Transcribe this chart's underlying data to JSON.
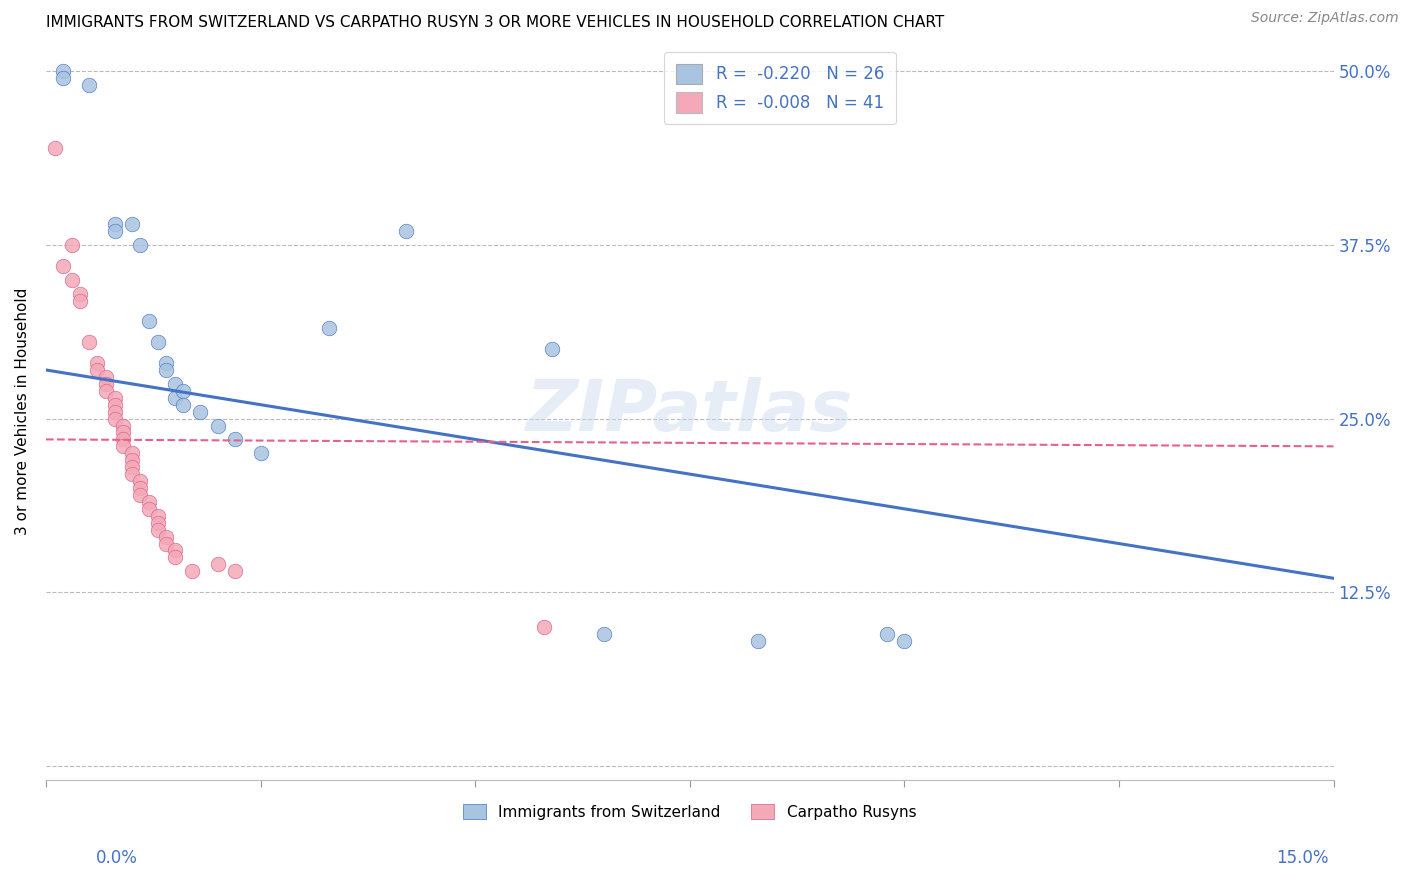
{
  "title": "IMMIGRANTS FROM SWITZERLAND VS CARPATHO RUSYN 3 OR MORE VEHICLES IN HOUSEHOLD CORRELATION CHART",
  "source": "Source: ZipAtlas.com",
  "ylabel": "3 or more Vehicles in Household",
  "color_swiss": "#a8c4e0",
  "color_rusyn": "#f4a8b8",
  "trendline_swiss_color": "#4472c4",
  "trendline_rusyn_color": "#e8608a",
  "xlim": [
    0.0,
    0.15
  ],
  "ylim": [
    -1.0,
    52.0
  ],
  "yticks": [
    0.0,
    12.5,
    25.0,
    37.5,
    50.0
  ],
  "ytick_labels": [
    "",
    "12.5%",
    "25.0%",
    "37.5%",
    "50.0%"
  ],
  "swiss_scatter": [
    [
      0.002,
      50.0
    ],
    [
      0.002,
      49.5
    ],
    [
      0.005,
      49.0
    ],
    [
      0.008,
      39.0
    ],
    [
      0.008,
      38.5
    ],
    [
      0.01,
      39.0
    ],
    [
      0.011,
      37.5
    ],
    [
      0.012,
      32.0
    ],
    [
      0.013,
      30.5
    ],
    [
      0.014,
      29.0
    ],
    [
      0.014,
      28.5
    ],
    [
      0.015,
      27.5
    ],
    [
      0.015,
      26.5
    ],
    [
      0.016,
      27.0
    ],
    [
      0.016,
      26.0
    ],
    [
      0.018,
      25.5
    ],
    [
      0.02,
      24.5
    ],
    [
      0.022,
      23.5
    ],
    [
      0.025,
      22.5
    ],
    [
      0.033,
      31.5
    ],
    [
      0.042,
      38.5
    ],
    [
      0.059,
      30.0
    ],
    [
      0.065,
      9.5
    ],
    [
      0.083,
      9.0
    ],
    [
      0.098,
      9.5
    ],
    [
      0.1,
      9.0
    ]
  ],
  "rusyn_scatter": [
    [
      0.001,
      44.5
    ],
    [
      0.002,
      36.0
    ],
    [
      0.003,
      37.5
    ],
    [
      0.003,
      35.0
    ],
    [
      0.004,
      34.0
    ],
    [
      0.004,
      33.5
    ],
    [
      0.005,
      30.5
    ],
    [
      0.006,
      29.0
    ],
    [
      0.006,
      28.5
    ],
    [
      0.007,
      28.0
    ],
    [
      0.007,
      27.5
    ],
    [
      0.007,
      27.0
    ],
    [
      0.008,
      26.5
    ],
    [
      0.008,
      26.0
    ],
    [
      0.008,
      25.5
    ],
    [
      0.008,
      25.0
    ],
    [
      0.009,
      24.5
    ],
    [
      0.009,
      24.0
    ],
    [
      0.009,
      23.5
    ],
    [
      0.009,
      23.0
    ],
    [
      0.01,
      22.5
    ],
    [
      0.01,
      22.0
    ],
    [
      0.01,
      21.5
    ],
    [
      0.01,
      21.0
    ],
    [
      0.011,
      20.5
    ],
    [
      0.011,
      20.0
    ],
    [
      0.011,
      19.5
    ],
    [
      0.012,
      19.0
    ],
    [
      0.012,
      18.5
    ],
    [
      0.013,
      18.0
    ],
    [
      0.013,
      17.5
    ],
    [
      0.013,
      17.0
    ],
    [
      0.014,
      16.5
    ],
    [
      0.014,
      16.0
    ],
    [
      0.015,
      15.5
    ],
    [
      0.015,
      15.0
    ],
    [
      0.017,
      14.0
    ],
    [
      0.02,
      14.5
    ],
    [
      0.022,
      14.0
    ],
    [
      0.058,
      10.0
    ]
  ],
  "swiss_trend_x": [
    0.0,
    0.15
  ],
  "swiss_trend_y": [
    28.5,
    13.5
  ],
  "rusyn_trend_x": [
    0.0,
    0.15
  ],
  "rusyn_trend_y": [
    23.5,
    23.0
  ]
}
